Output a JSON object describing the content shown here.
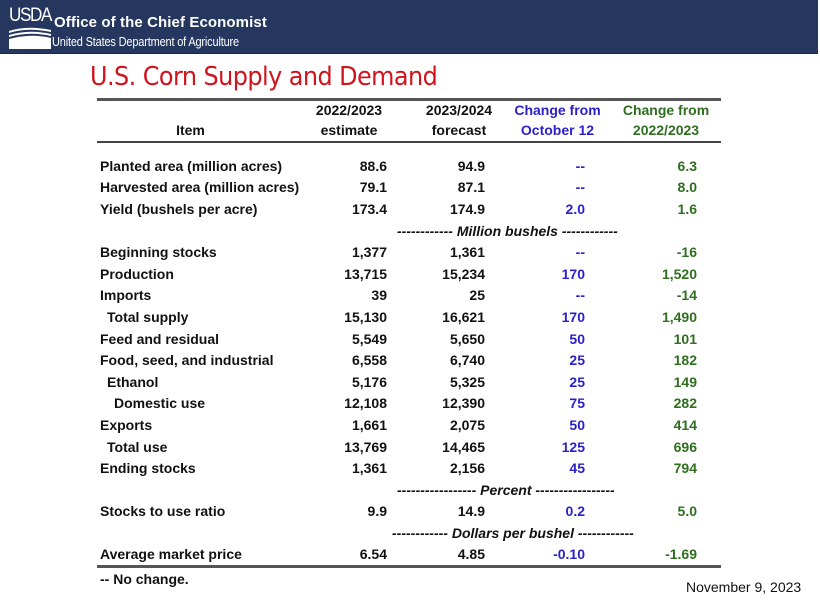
{
  "banner": {
    "logo_text": "USDA",
    "office": "Office of the Chief Economist",
    "department": "United States Department of Agriculture",
    "background_color": "#26375f"
  },
  "title": "U.S. Corn Supply and Demand",
  "title_color": "#d0141e",
  "table": {
    "headers": [
      {
        "line1": "",
        "line2": "Item"
      },
      {
        "line1": "2022/2023",
        "line2": "estimate"
      },
      {
        "line1": "2023/2024",
        "line2": "forecast"
      },
      {
        "line1": "Change from",
        "line2": "October 12"
      },
      {
        "line1": "Change from",
        "line2": "2022/2023"
      }
    ],
    "change_oct_color": "#2a1fc8",
    "change_prev_color": "#2e6e1e",
    "section_area": [
      {
        "item": "Planted area (million acres)",
        "est": "88.6",
        "fc": "94.9",
        "chg_oct": "--",
        "chg_prev": "6.3"
      },
      {
        "item": "Harvested area (million acres)",
        "est": "79.1",
        "fc": "87.1",
        "chg_oct": "--",
        "chg_prev": "8.0"
      },
      {
        "item": "Yield (bushels per acre)",
        "est": "173.4",
        "fc": "174.9",
        "chg_oct": "2.0",
        "chg_prev": "1.6"
      }
    ],
    "unit_bushels": "------------ Million bushels ------------",
    "section_bushels": [
      {
        "item": "Beginning stocks",
        "est": "1,377",
        "fc": "1,361",
        "chg_oct": "--",
        "chg_prev": "-16",
        "indent": 0
      },
      {
        "item": "Production",
        "est": "13,715",
        "fc": "15,234",
        "chg_oct": "170",
        "chg_prev": "1,520",
        "indent": 0
      },
      {
        "item": "Imports",
        "est": "39",
        "fc": "25",
        "chg_oct": "--",
        "chg_prev": "-14",
        "indent": 0
      },
      {
        "item": "Total supply",
        "est": "15,130",
        "fc": "16,621",
        "chg_oct": "170",
        "chg_prev": "1,490",
        "indent": 1
      },
      {
        "item": "Feed and residual",
        "est": "5,549",
        "fc": "5,650",
        "chg_oct": "50",
        "chg_prev": "101",
        "indent": 0
      },
      {
        "item": "Food, seed, and industrial",
        "est": "6,558",
        "fc": "6,740",
        "chg_oct": "25",
        "chg_prev": "182",
        "indent": 0
      },
      {
        "item": "Ethanol",
        "est": "5,176",
        "fc": "5,325",
        "chg_oct": "25",
        "chg_prev": "149",
        "indent": 1
      },
      {
        "item": "Domestic use",
        "est": "12,108",
        "fc": "12,390",
        "chg_oct": "75",
        "chg_prev": "282",
        "indent": 2
      },
      {
        "item": "Exports",
        "est": "1,661",
        "fc": "2,075",
        "chg_oct": "50",
        "chg_prev": "414",
        "indent": 0
      },
      {
        "item": "Total use",
        "est": "13,769",
        "fc": "14,465",
        "chg_oct": "125",
        "chg_prev": "696",
        "indent": 1
      },
      {
        "item": "Ending stocks",
        "est": "1,361",
        "fc": "2,156",
        "chg_oct": "45",
        "chg_prev": "794",
        "indent": 0
      }
    ],
    "unit_percent": "----------------- Percent -----------------",
    "section_percent": [
      {
        "item": "Stocks to use ratio",
        "est": "9.9",
        "fc": "14.9",
        "chg_oct": "0.2",
        "chg_prev": "5.0"
      }
    ],
    "unit_dollars": "------------ Dollars per bushel ------------",
    "section_dollars": [
      {
        "item": "Average market price",
        "est": "6.54",
        "fc": "4.85",
        "chg_oct": "-0.10",
        "chg_prev": "-1.69"
      }
    ]
  },
  "footnote": "-- No change.",
  "date": "November 9, 2023"
}
